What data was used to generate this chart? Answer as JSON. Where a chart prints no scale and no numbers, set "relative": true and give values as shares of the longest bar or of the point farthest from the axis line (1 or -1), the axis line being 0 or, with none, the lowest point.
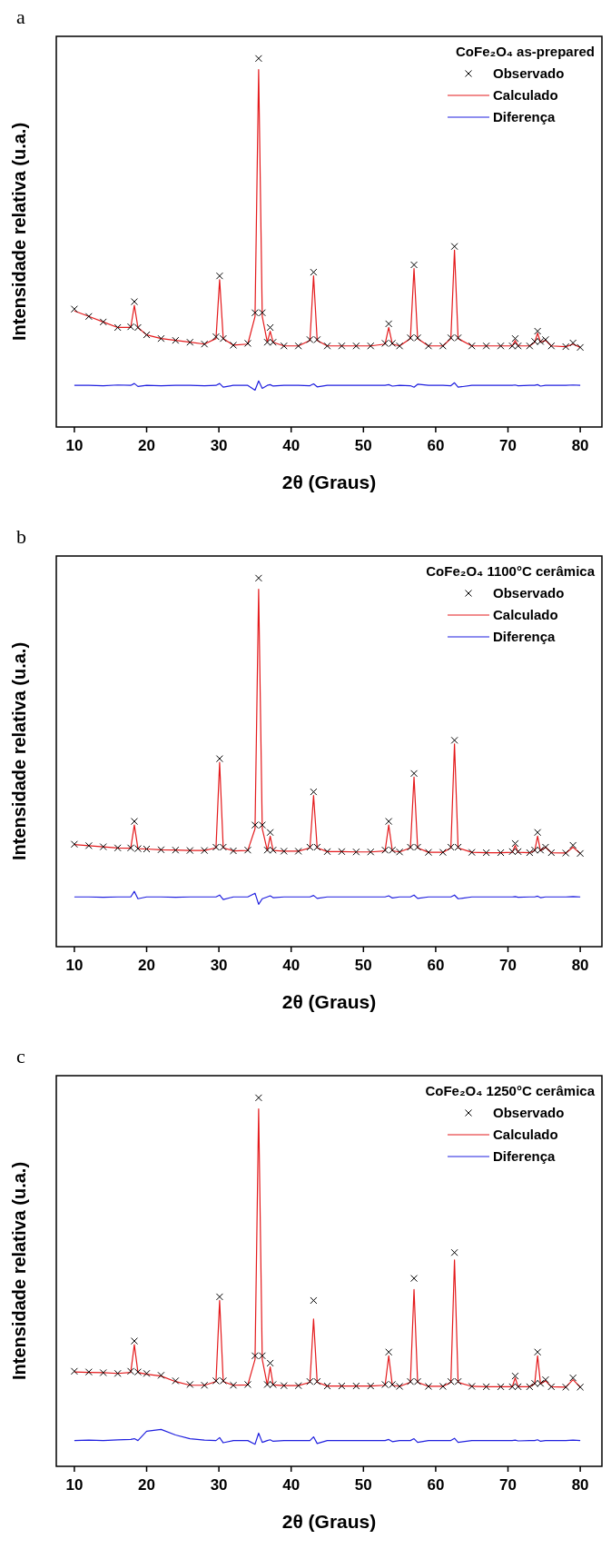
{
  "chart_data": [
    {
      "type": "line",
      "title": "a",
      "xlabel": "2θ (Graus)",
      "ylabel": "Intensidade relativa (u.a.)",
      "legend_title": "CoFe₂O₄ as-prepared",
      "relative": true,
      "xlim": [
        7.5,
        83
      ],
      "xticks": [
        10,
        20,
        30,
        40,
        50,
        60,
        70,
        80
      ],
      "tick_labels": "x",
      "legend": "top right",
      "x": [
        10,
        12,
        14,
        16,
        17.8,
        18.3,
        18.8,
        20,
        22,
        24,
        26,
        28,
        29.6,
        30.1,
        30.6,
        32,
        34,
        35.0,
        35.5,
        36.0,
        36.7,
        37.1,
        37.5,
        39,
        41,
        42.6,
        43.1,
        43.6,
        45,
        47,
        49,
        51,
        53.0,
        53.5,
        54.0,
        55,
        56.5,
        57.0,
        57.5,
        59,
        61,
        62.1,
        62.6,
        63.1,
        65,
        67,
        69,
        70.6,
        71.0,
        71.4,
        73,
        73.7,
        74.1,
        74.5,
        75.2,
        76,
        78,
        79.0,
        80
      ],
      "series": [
        {
          "name": "Observado",
          "type": "scatter",
          "marker": "cross",
          "color": "#000000",
          "values": [
            0.32,
            0.3,
            0.285,
            0.27,
            0.272,
            0.34,
            0.27,
            0.25,
            0.24,
            0.235,
            0.23,
            0.225,
            0.245,
            0.41,
            0.24,
            0.222,
            0.227,
            0.31,
            1.0,
            0.31,
            0.23,
            0.27,
            0.23,
            0.22,
            0.22,
            0.237,
            0.42,
            0.237,
            0.22,
            0.22,
            0.22,
            0.22,
            0.227,
            0.28,
            0.227,
            0.22,
            0.242,
            0.44,
            0.242,
            0.22,
            0.22,
            0.242,
            0.49,
            0.242,
            0.22,
            0.22,
            0.22,
            0.22,
            0.24,
            0.22,
            0.22,
            0.232,
            0.26,
            0.232,
            0.237,
            0.22,
            0.218,
            0.228,
            0.216
          ]
        },
        {
          "name": "Calculado",
          "color": "#e41a1c",
          "values": [
            0.315,
            0.3,
            0.285,
            0.27,
            0.27,
            0.33,
            0.27,
            0.25,
            0.24,
            0.235,
            0.23,
            0.225,
            0.24,
            0.4,
            0.24,
            0.222,
            0.225,
            0.3,
            0.97,
            0.3,
            0.23,
            0.26,
            0.23,
            0.22,
            0.22,
            0.235,
            0.41,
            0.235,
            0.22,
            0.22,
            0.22,
            0.22,
            0.225,
            0.27,
            0.225,
            0.22,
            0.24,
            0.43,
            0.24,
            0.22,
            0.22,
            0.24,
            0.48,
            0.24,
            0.22,
            0.22,
            0.22,
            0.22,
            0.235,
            0.22,
            0.22,
            0.23,
            0.255,
            0.23,
            0.235,
            0.22,
            0.218,
            0.225,
            0.216
          ]
        },
        {
          "name": "Diferença",
          "color": "#1f1fdf",
          "values": [
            0.113,
            0.113,
            0.112,
            0.114,
            0.113,
            0.118,
            0.11,
            0.113,
            0.112,
            0.113,
            0.113,
            0.112,
            0.113,
            0.118,
            0.108,
            0.113,
            0.113,
            0.1,
            0.125,
            0.105,
            0.113,
            0.115,
            0.111,
            0.113,
            0.113,
            0.112,
            0.117,
            0.109,
            0.113,
            0.113,
            0.113,
            0.113,
            0.113,
            0.115,
            0.111,
            0.113,
            0.112,
            0.108,
            0.116,
            0.113,
            0.113,
            0.112,
            0.12,
            0.108,
            0.113,
            0.113,
            0.113,
            0.113,
            0.114,
            0.112,
            0.113,
            0.113,
            0.115,
            0.111,
            0.113,
            0.113,
            0.113,
            0.114,
            0.113
          ]
        }
      ]
    },
    {
      "type": "line",
      "title": "b",
      "xlabel": "2θ (Graus)",
      "ylabel": "Intensidade relativa (u.a.)",
      "legend_title": "CoFe₂O₄ 1100°C cerâmica",
      "relative": true,
      "xlim": [
        7.5,
        83
      ],
      "xticks": [
        10,
        20,
        30,
        40,
        50,
        60,
        70,
        80
      ],
      "tick_labels": "x",
      "legend": "top right",
      "x": [
        10,
        12,
        14,
        16,
        17.8,
        18.3,
        18.8,
        20,
        22,
        24,
        26,
        28,
        29.6,
        30.1,
        30.6,
        32,
        34,
        35.0,
        35.5,
        36.0,
        36.7,
        37.1,
        37.5,
        39,
        41,
        42.6,
        43.1,
        43.6,
        45,
        47,
        49,
        51,
        53.0,
        53.5,
        54.0,
        55,
        56.5,
        57.0,
        57.5,
        59,
        61,
        62.1,
        62.6,
        63.1,
        65,
        67,
        69,
        70.6,
        71.0,
        71.4,
        73,
        73.7,
        74.1,
        74.5,
        75.2,
        76,
        78,
        79.0,
        80
      ],
      "series": [
        {
          "name": "Observado",
          "type": "scatter",
          "marker": "cross",
          "color": "#000000",
          "values": [
            0.278,
            0.274,
            0.271,
            0.268,
            0.268,
            0.34,
            0.266,
            0.265,
            0.263,
            0.262,
            0.261,
            0.261,
            0.27,
            0.51,
            0.27,
            0.26,
            0.262,
            0.33,
            1.0,
            0.33,
            0.262,
            0.31,
            0.262,
            0.259,
            0.259,
            0.27,
            0.42,
            0.27,
            0.258,
            0.258,
            0.257,
            0.257,
            0.262,
            0.34,
            0.262,
            0.257,
            0.27,
            0.47,
            0.27,
            0.256,
            0.256,
            0.27,
            0.56,
            0.27,
            0.256,
            0.255,
            0.255,
            0.258,
            0.28,
            0.258,
            0.255,
            0.262,
            0.31,
            0.262,
            0.27,
            0.255,
            0.254,
            0.275,
            0.253
          ]
        },
        {
          "name": "Calculado",
          "color": "#e41a1c",
          "values": [
            0.277,
            0.274,
            0.271,
            0.268,
            0.267,
            0.33,
            0.266,
            0.265,
            0.263,
            0.262,
            0.261,
            0.261,
            0.268,
            0.5,
            0.268,
            0.26,
            0.261,
            0.32,
            0.97,
            0.32,
            0.261,
            0.3,
            0.261,
            0.259,
            0.259,
            0.268,
            0.41,
            0.268,
            0.258,
            0.258,
            0.257,
            0.257,
            0.26,
            0.33,
            0.26,
            0.257,
            0.268,
            0.46,
            0.268,
            0.256,
            0.256,
            0.268,
            0.55,
            0.268,
            0.256,
            0.255,
            0.255,
            0.256,
            0.275,
            0.256,
            0.255,
            0.26,
            0.3,
            0.26,
            0.27,
            0.255,
            0.254,
            0.27,
            0.253
          ]
        },
        {
          "name": "Diferença",
          "color": "#1f1fdf",
          "values": [
            0.135,
            0.135,
            0.134,
            0.135,
            0.135,
            0.15,
            0.13,
            0.135,
            0.135,
            0.134,
            0.135,
            0.135,
            0.135,
            0.14,
            0.128,
            0.135,
            0.135,
            0.145,
            0.115,
            0.13,
            0.135,
            0.138,
            0.133,
            0.135,
            0.135,
            0.135,
            0.139,
            0.131,
            0.135,
            0.135,
            0.135,
            0.135,
            0.135,
            0.138,
            0.132,
            0.135,
            0.135,
            0.14,
            0.131,
            0.135,
            0.135,
            0.135,
            0.14,
            0.13,
            0.135,
            0.135,
            0.135,
            0.135,
            0.136,
            0.134,
            0.135,
            0.135,
            0.137,
            0.133,
            0.135,
            0.135,
            0.135,
            0.136,
            0.135
          ]
        }
      ]
    },
    {
      "type": "line",
      "title": "c",
      "xlabel": "2θ (Graus)",
      "ylabel": "Intensidade relativa (u.a.)",
      "legend_title": "CoFe₂O₄ 1250°C cerâmica",
      "relative": true,
      "xlim": [
        7.5,
        83
      ],
      "xticks": [
        10,
        20,
        30,
        40,
        50,
        60,
        70,
        80
      ],
      "tick_labels": "x",
      "legend": "top right",
      "x": [
        10,
        12,
        14,
        16,
        17.8,
        18.3,
        18.8,
        20,
        22,
        24,
        26,
        28,
        29.6,
        30.1,
        30.6,
        32,
        34,
        35.0,
        35.5,
        36.0,
        36.7,
        37.1,
        37.5,
        39,
        41,
        42.6,
        43.1,
        43.6,
        45,
        47,
        49,
        51,
        53.0,
        53.5,
        54.0,
        55,
        56.5,
        57.0,
        57.5,
        59,
        61,
        62.1,
        62.6,
        63.1,
        65,
        67,
        69,
        70.6,
        71.0,
        71.4,
        73,
        73.7,
        74.1,
        74.5,
        75.2,
        76,
        78,
        79.0,
        80
      ],
      "series": [
        {
          "name": "Observado",
          "type": "scatter",
          "marker": "cross",
          "color": "#000000",
          "values": [
            0.258,
            0.256,
            0.254,
            0.252,
            0.258,
            0.34,
            0.256,
            0.252,
            0.247,
            0.232,
            0.222,
            0.22,
            0.232,
            0.46,
            0.232,
            0.22,
            0.222,
            0.3,
            1.0,
            0.3,
            0.222,
            0.28,
            0.222,
            0.219,
            0.219,
            0.23,
            0.45,
            0.23,
            0.218,
            0.218,
            0.218,
            0.218,
            0.222,
            0.31,
            0.222,
            0.217,
            0.23,
            0.51,
            0.23,
            0.217,
            0.217,
            0.23,
            0.58,
            0.23,
            0.217,
            0.216,
            0.216,
            0.216,
            0.245,
            0.216,
            0.216,
            0.225,
            0.31,
            0.225,
            0.235,
            0.216,
            0.215,
            0.24,
            0.215
          ]
        },
        {
          "name": "Calculado",
          "color": "#e41a1c",
          "values": [
            0.256,
            0.255,
            0.254,
            0.252,
            0.255,
            0.33,
            0.255,
            0.25,
            0.245,
            0.23,
            0.22,
            0.22,
            0.23,
            0.45,
            0.23,
            0.22,
            0.221,
            0.29,
            0.97,
            0.29,
            0.221,
            0.27,
            0.221,
            0.219,
            0.219,
            0.228,
            0.4,
            0.228,
            0.218,
            0.218,
            0.218,
            0.218,
            0.22,
            0.3,
            0.22,
            0.217,
            0.228,
            0.48,
            0.228,
            0.217,
            0.217,
            0.228,
            0.56,
            0.228,
            0.217,
            0.216,
            0.216,
            0.216,
            0.24,
            0.216,
            0.216,
            0.224,
            0.3,
            0.224,
            0.232,
            0.216,
            0.215,
            0.235,
            0.215
          ]
        },
        {
          "name": "Diferença",
          "color": "#1f1fdf",
          "values": [
            0.07,
            0.071,
            0.07,
            0.072,
            0.073,
            0.075,
            0.07,
            0.095,
            0.1,
            0.085,
            0.075,
            0.071,
            0.07,
            0.078,
            0.064,
            0.07,
            0.07,
            0.06,
            0.09,
            0.065,
            0.07,
            0.072,
            0.068,
            0.07,
            0.07,
            0.07,
            0.08,
            0.062,
            0.07,
            0.07,
            0.07,
            0.07,
            0.07,
            0.073,
            0.067,
            0.07,
            0.07,
            0.075,
            0.065,
            0.07,
            0.07,
            0.07,
            0.076,
            0.065,
            0.07,
            0.07,
            0.07,
            0.07,
            0.071,
            0.069,
            0.07,
            0.07,
            0.072,
            0.068,
            0.07,
            0.07,
            0.07,
            0.071,
            0.07
          ]
        }
      ]
    }
  ]
}
